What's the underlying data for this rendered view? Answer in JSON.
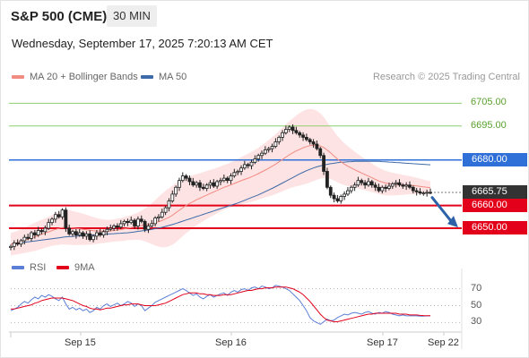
{
  "header": {
    "title": "S&P 500 (CME)",
    "timeframe": "30 MIN",
    "timestamp": "Wednesday, September 17, 2025 7:20:13 AM CET"
  },
  "legend": {
    "ma20_label": "MA 20 + Bollinger Bands",
    "ma50_label": "MA 50",
    "credit": "Research © 2025 Trading Central"
  },
  "rsi_legend": {
    "rsi_label": "RSI",
    "ma9_label": "9MA"
  },
  "colors": {
    "ma20": "#f28b82",
    "bollinger_fill": "#fddede",
    "ma50": "#3d6aa8",
    "support": "#e2001a",
    "resistance": "#2e6fd8",
    "target_line": "#8fce6f",
    "target_text": "#5aa02c",
    "last_price": "#333333",
    "rsi": "#5b7fd6",
    "rsi_ma": "#e2001a",
    "arrow": "#2d62a8"
  },
  "chart_data": {
    "type": "candlestick",
    "y_range": [
      6637,
      6713
    ],
    "x_labels": [
      "Sep 15",
      "Sep 16",
      "Sep 17",
      "Sep 22"
    ],
    "levels": [
      {
        "value": 6705.0,
        "label": "6705.00",
        "kind": "target"
      },
      {
        "value": 6695.0,
        "label": "6695.00",
        "kind": "target"
      },
      {
        "value": 6680.0,
        "label": "6680.00",
        "kind": "resistance"
      },
      {
        "value": 6665.75,
        "label": "6665.75",
        "kind": "last"
      },
      {
        "value": 6660.0,
        "label": "6660.00",
        "kind": "support"
      },
      {
        "value": 6650.0,
        "label": "6650.00",
        "kind": "support"
      }
    ],
    "close": [
      6642.0,
      6643.5,
      6643.0,
      6644.5,
      6646.0,
      6645.5,
      6648.0,
      6647.0,
      6649.0,
      6648.5,
      6650.0,
      6652.5,
      6654.0,
      6656.0,
      6655.0,
      6658.0,
      6650.0,
      6647.5,
      6648.5,
      6647.0,
      6648.0,
      6646.5,
      6647.5,
      6645.0,
      6646.5,
      6648.0,
      6647.0,
      6648.5,
      6649.5,
      6650.0,
      6651.0,
      6650.5,
      6652.0,
      6653.0,
      6652.5,
      6653.5,
      6651.0,
      6654.0,
      6653.0,
      6649.5,
      6651.0,
      6652.0,
      6654.5,
      6655.0,
      6657.0,
      6659.0,
      6662.0,
      6665.0,
      6668.0,
      6671.0,
      6673.0,
      6672.0,
      6670.5,
      6669.0,
      6670.0,
      6668.0,
      6667.5,
      6669.0,
      6670.0,
      6668.5,
      6670.5,
      6671.0,
      6672.0,
      6671.0,
      6673.0,
      6674.5,
      6675.0,
      6676.5,
      6678.0,
      6677.5,
      6679.0,
      6680.5,
      6682.0,
      6683.0,
      6684.5,
      6685.0,
      6686.0,
      6688.0,
      6690.0,
      6692.0,
      6693.5,
      6694.5,
      6693.0,
      6692.0,
      6691.0,
      6690.0,
      6689.0,
      6688.0,
      6687.0,
      6685.0,
      6682.0,
      6675.0,
      6668.0,
      6664.5,
      6663.0,
      6662.0,
      6664.0,
      6665.0,
      6666.5,
      6668.0,
      6669.0,
      6671.0,
      6670.0,
      6669.0,
      6670.5,
      6669.0,
      6668.0,
      6666.5,
      6668.0,
      6667.5,
      6668.5,
      6669.5,
      6670.0,
      6669.0,
      6668.5,
      6669.0,
      6668.0,
      6666.5,
      6666.0,
      6665.5,
      6665.5,
      6665.8,
      6665.75
    ],
    "ma20": [
      6643.0,
      6643.3,
      6643.7,
      6644.2,
      6644.7,
      6645.2,
      6645.7,
      6646.2,
      6646.8,
      6647.3,
      6647.9,
      6648.4,
      6649.0,
      6649.5,
      6649.9,
      6650.3,
      6650.4,
      6650.3,
      6650.1,
      6649.9,
      6649.7,
      6649.5,
      6649.3,
      6649.1,
      6648.9,
      6648.8,
      6648.7,
      6648.7,
      6648.7,
      6648.8,
      6649.0,
      6649.2,
      6649.4,
      6649.7,
      6650.0,
      6650.3,
      6650.6,
      6650.9,
      6651.2,
      6651.4,
      6651.7,
      6652.0,
      6652.4,
      6652.9,
      6653.4,
      6654.1,
      6654.8,
      6655.7,
      6656.8,
      6657.9,
      6659.0,
      6660.0,
      6660.9,
      6661.7,
      6662.5,
      6663.2,
      6663.9,
      6664.6,
      6665.3,
      6665.9,
      6666.6,
      6667.3,
      6668.0,
      6668.5,
      6669.1,
      6669.7,
      6670.3,
      6670.9,
      6671.5,
      6672.0,
      6672.6,
      6673.3,
      6674.0,
      6674.8,
      6675.6,
      6676.4,
      6677.3,
      6678.2,
      6679.2,
      6680.2,
      6681.3,
      6682.3,
      6683.2,
      6684.0,
      6684.7,
      6685.4,
      6685.9,
      6686.3,
      6686.5,
      6686.5,
      6686.2,
      6685.5,
      6684.4,
      6683.1,
      6681.8,
      6680.4,
      6679.2,
      6678.2,
      6677.3,
      6676.5,
      6675.7,
      6675.0,
      6674.3,
      6673.6,
      6672.9,
      6672.2,
      6671.5,
      6670.8,
      6670.3,
      6669.9,
      6669.6,
      6669.4,
      6669.3,
      6669.2,
      6669.1,
      6669.0,
      6668.9,
      6668.8,
      6668.6,
      6668.4,
      6668.2,
      6668.0,
      6667.8
    ],
    "ma50": [
      6643.0,
      6643.2,
      6643.4,
      6643.6,
      6643.8,
      6644.0,
      6644.2,
      6644.4,
      6644.6,
      6644.8,
      6645.0,
      6645.2,
      6645.4,
      6645.6,
      6645.8,
      6646.0,
      6646.2,
      6646.3,
      6646.4,
      6646.5,
      6646.6,
      6646.7,
      6646.8,
      6646.9,
      6647.0,
      6647.1,
      6647.2,
      6647.3,
      6647.4,
      6647.5,
      6647.6,
      6647.7,
      6647.8,
      6647.9,
      6648.0,
      6648.2,
      6648.4,
      6648.6,
      6648.8,
      6649.0,
      6649.2,
      6649.5,
      6649.8,
      6650.1,
      6650.4,
      6650.8,
      6651.2,
      6651.6,
      6652.1,
      6652.6,
      6653.1,
      6653.6,
      6654.1,
      6654.6,
      6655.1,
      6655.6,
      6656.1,
      6656.6,
      6657.1,
      6657.6,
      6658.1,
      6658.6,
      6659.1,
      6659.6,
      6660.1,
      6660.6,
      6661.1,
      6661.7,
      6662.3,
      6662.9,
      6663.5,
      6664.1,
      6664.7,
      6665.4,
      6666.1,
      6666.8,
      6667.5,
      6668.3,
      6669.1,
      6669.9,
      6670.7,
      6671.5,
      6672.3,
      6673.1,
      6673.9,
      6674.6,
      6675.3,
      6675.9,
      6676.5,
      6677.0,
      6677.4,
      6677.8,
      6678.1,
      6678.4,
      6678.6,
      6678.8,
      6679.0,
      6679.1,
      6679.2,
      6679.3,
      6679.4,
      6679.4,
      6679.4,
      6679.4,
      6679.4,
      6679.4,
      6679.4,
      6679.4,
      6679.3,
      6679.2,
      6679.1,
      6679.0,
      6678.9,
      6678.8,
      6678.7,
      6678.6,
      6678.5,
      6678.4,
      6678.3,
      6678.2,
      6678.1,
      6678.0,
      6677.9
    ],
    "bollinger_half_width": [
      5.0,
      5.0,
      5.2,
      5.4,
      5.6,
      5.8,
      6.0,
      6.2,
      6.3,
      6.4,
      6.5,
      6.6,
      6.8,
      7.0,
      7.2,
      7.4,
      7.6,
      7.6,
      7.5,
      7.3,
      7.1,
      6.9,
      6.6,
      6.3,
      6.0,
      5.7,
      5.4,
      5.2,
      5.0,
      4.9,
      4.9,
      5.0,
      5.1,
      5.2,
      5.3,
      5.5,
      5.7,
      6.0,
      6.5,
      7.2,
      8.0,
      9.0,
      10.0,
      11.0,
      11.8,
      12.4,
      12.8,
      13.0,
      13.0,
      12.8,
      12.5,
      12.2,
      11.9,
      11.6,
      11.3,
      11.0,
      10.8,
      10.6,
      10.4,
      10.2,
      10.0,
      9.9,
      9.8,
      9.8,
      9.9,
      10.0,
      10.2,
      10.4,
      10.6,
      10.8,
      11.0,
      11.2,
      11.4,
      11.7,
      12.0,
      12.4,
      12.8,
      13.2,
      13.6,
      14.0,
      14.4,
      14.8,
      15.2,
      15.6,
      16.0,
      16.2,
      16.3,
      16.2,
      15.8,
      15.2,
      14.4,
      13.4,
      12.4,
      11.5,
      10.8,
      10.2,
      9.7,
      9.2,
      8.8,
      8.4,
      8.0,
      7.6,
      7.2,
      6.9,
      6.6,
      6.3,
      6.0,
      5.8,
      5.6,
      5.4,
      5.2,
      5.0,
      4.8,
      4.6,
      4.4,
      4.2,
      4.0,
      3.8,
      3.6,
      3.4,
      3.2,
      3.0,
      2.9
    ],
    "rsi": {
      "ticks": [
        70,
        50,
        30
      ],
      "y_range": [
        22,
        78
      ],
      "values": [
        44,
        46,
        48,
        52,
        55,
        53,
        57,
        60,
        58,
        62,
        60,
        63,
        61,
        58,
        56,
        60,
        52,
        46,
        48,
        45,
        47,
        44,
        46,
        42,
        44,
        48,
        46,
        50,
        52,
        49,
        51,
        53,
        50,
        52,
        55,
        53,
        49,
        52,
        50,
        44,
        47,
        50,
        54,
        56,
        58,
        60,
        62,
        64,
        66,
        68,
        70,
        68,
        65,
        62,
        64,
        60,
        58,
        61,
        63,
        60,
        62,
        64,
        65,
        62,
        66,
        68,
        66,
        69,
        70,
        68,
        71,
        72,
        70,
        73,
        72,
        70,
        71,
        74,
        73,
        72,
        70,
        68,
        64,
        60,
        56,
        50,
        44,
        36,
        32,
        30,
        28,
        31,
        34,
        32,
        33,
        36,
        38,
        40,
        39,
        41,
        42,
        41,
        40,
        42,
        43,
        41,
        40,
        42,
        41,
        43,
        42,
        40,
        39,
        38,
        39,
        38,
        38,
        38,
        38,
        37.5,
        37.5,
        38,
        38
      ],
      "ma9": [
        46,
        46,
        47,
        48,
        49,
        50,
        51,
        53,
        54,
        56,
        57,
        58,
        59,
        59,
        59,
        59,
        58,
        57,
        56,
        54,
        52,
        50,
        49,
        47,
        46,
        46,
        45,
        46,
        47,
        47,
        48,
        49,
        50,
        51,
        51,
        52,
        52,
        52,
        51,
        50,
        50,
        50,
        50,
        51,
        52,
        53,
        55,
        57,
        59,
        61,
        63,
        64,
        65,
        65,
        65,
        64,
        64,
        63,
        63,
        62,
        62,
        62,
        63,
        63,
        63,
        64,
        65,
        66,
        67,
        68,
        68,
        69,
        70,
        70,
        71,
        71,
        71,
        72,
        72,
        72,
        72,
        71,
        70,
        68,
        66,
        63,
        59,
        55,
        50,
        45,
        40,
        36,
        33,
        32,
        31,
        31,
        32,
        33,
        34,
        35,
        36,
        37,
        38,
        39,
        40,
        40,
        41,
        41,
        41,
        41,
        41,
        41,
        41,
        40,
        40,
        40,
        39,
        39,
        39,
        38.5,
        38.3,
        38.2,
        38.1
      ]
    }
  }
}
